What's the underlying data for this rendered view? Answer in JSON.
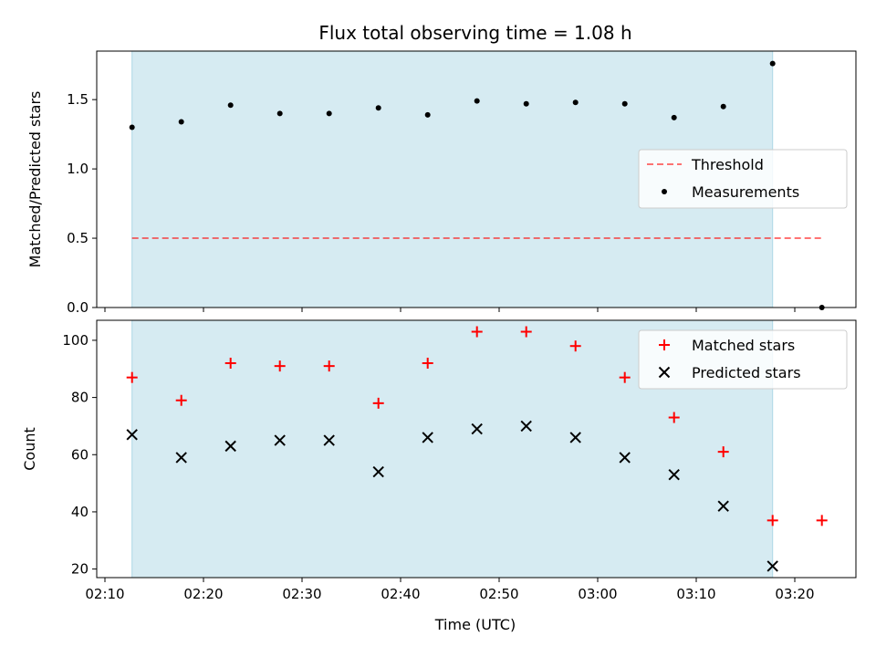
{
  "colors": {
    "shade": "#add8e6",
    "threshold": "#ff0000",
    "measurement": "#000000",
    "matched": "#ff0000",
    "predicted": "#000000"
  },
  "chart_data": {
    "title": "Flux total observing time = 1.08 h",
    "xlabel": "Time (UTC)",
    "x_ticks": [
      "02:10",
      "02:20",
      "02:30",
      "02:40",
      "02:50",
      "03:00",
      "03:10",
      "03:20"
    ],
    "xlim_minutes": [
      8.7,
      26.2
    ],
    "x_tick_values_minutes": [
      10,
      20,
      30,
      40,
      50,
      60,
      70,
      80
    ],
    "shaded_span_minutes": [
      12.75,
      77.75
    ],
    "panels": [
      {
        "type": "scatter",
        "ylabel": "Matched/Predicted stars",
        "ylim": [
          0.0,
          1.85
        ],
        "y_ticks": [
          "0.0",
          "0.5",
          "1.0",
          "1.5"
        ],
        "y_tick_values": [
          0.0,
          0.5,
          1.0,
          1.5
        ],
        "legend_position": "center-right",
        "threshold": {
          "name": "Threshold",
          "value": 0.5,
          "x_range": [
            12.75,
            82.75
          ],
          "style": "dashed"
        },
        "series": [
          {
            "name": "Measurements",
            "marker": "dot",
            "x": [
              12.75,
              17.75,
              22.75,
              27.75,
              32.75,
              37.75,
              42.75,
              47.75,
              52.75,
              57.75,
              62.75,
              67.75,
              72.75,
              77.75,
              82.75
            ],
            "y": [
              1.3,
              1.34,
              1.46,
              1.4,
              1.4,
              1.44,
              1.39,
              1.49,
              1.47,
              1.48,
              1.47,
              1.37,
              1.45,
              1.76,
              0.0
            ]
          }
        ]
      },
      {
        "type": "scatter",
        "ylabel": "Count",
        "ylim": [
          17,
          107
        ],
        "y_ticks": [
          "20",
          "40",
          "60",
          "80",
          "100"
        ],
        "y_tick_values": [
          20,
          40,
          60,
          80,
          100
        ],
        "legend_position": "top-right",
        "series": [
          {
            "name": "Matched stars",
            "marker": "plus",
            "x": [
              12.75,
              17.75,
              22.75,
              27.75,
              32.75,
              37.75,
              42.75,
              47.75,
              52.75,
              57.75,
              62.75,
              67.75,
              72.75,
              77.75,
              82.75
            ],
            "y": [
              87,
              79,
              92,
              91,
              91,
              78,
              92,
              103,
              103,
              98,
              87,
              73,
              61,
              37,
              37
            ]
          },
          {
            "name": "Predicted stars",
            "marker": "x",
            "x": [
              12.75,
              17.75,
              22.75,
              27.75,
              32.75,
              37.75,
              42.75,
              47.75,
              52.75,
              57.75,
              62.75,
              67.75,
              72.75,
              77.75
            ],
            "y": [
              67,
              59,
              63,
              65,
              65,
              54,
              66,
              69,
              70,
              66,
              59,
              53,
              42,
              21
            ]
          }
        ]
      }
    ]
  }
}
